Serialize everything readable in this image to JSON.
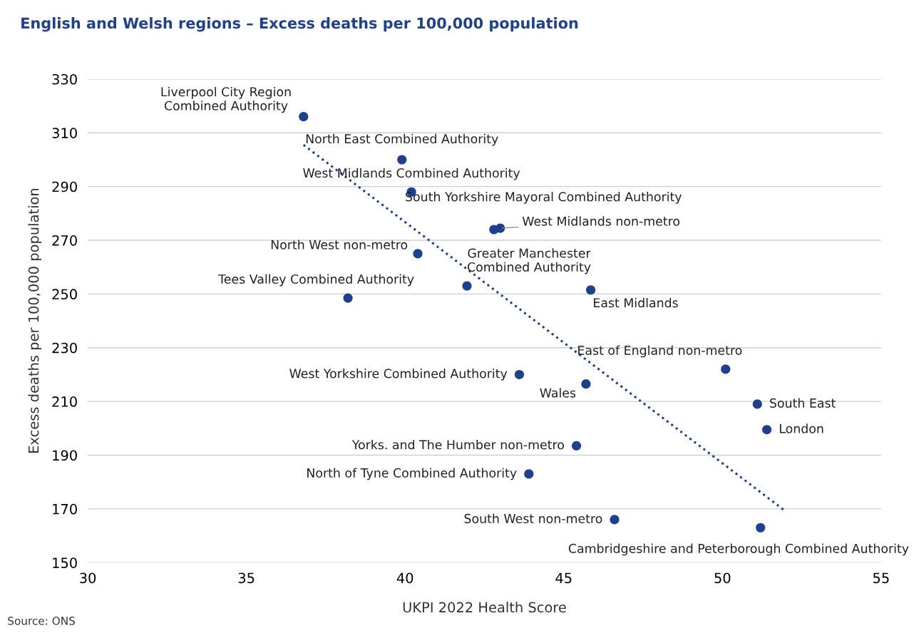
{
  "chart_data": {
    "type": "scatter",
    "title": "English and Welsh regions – Excess deaths per 100,000 population",
    "xlabel": "UKPI 2022 Health Score",
    "ylabel": "Excess deaths per 100,000 population",
    "xlim": [
      30,
      55
    ],
    "xticks": [
      30,
      35,
      40,
      45,
      50,
      55
    ],
    "ylim": [
      150,
      330
    ],
    "yticks": [
      150,
      170,
      190,
      210,
      230,
      250,
      270,
      290,
      310,
      330
    ],
    "grid": "y",
    "series": [
      {
        "marker": "circle",
        "color": "#1f3f8f",
        "x": [
          36.8,
          39.9,
          40.2,
          42.8,
          43.0,
          40.4,
          41.95,
          45.85,
          38.2,
          50.1,
          43.6,
          45.7,
          51.1,
          51.4,
          45.4,
          43.9,
          46.6,
          51.2
        ],
        "values": [
          316,
          300,
          288,
          274,
          274.5,
          265,
          253,
          251.5,
          248.5,
          222,
          220,
          216.5,
          209,
          199.5,
          193.5,
          183,
          166,
          163
        ]
      },
      {
        "type": "line",
        "color": "#1f3f8f",
        "line_style": "dotted",
        "x": [
          36.8,
          51.95
        ],
        "values": [
          305.5,
          169.5
        ]
      }
    ],
    "annotations": [
      {
        "text": "Liverpool City Region\nCombined Authority",
        "x": 36.8,
        "y": 316
      },
      {
        "text": "North East Combined Authority",
        "x": 39.9,
        "y": 300
      },
      {
        "text": "West Midlands Combined Authority",
        "x": 40.2,
        "y": 288
      },
      {
        "text": "South Yorkshire Mayoral Combined Authority",
        "x": 42.8,
        "y": 274
      },
      {
        "text": "West Midlands non-metro",
        "x": 43.0,
        "y": 274.5
      },
      {
        "text": "North West non-metro",
        "x": 40.4,
        "y": 265
      },
      {
        "text": "Greater Manchester\nCombined Authority",
        "x": 41.95,
        "y": 253
      },
      {
        "text": "East Midlands",
        "x": 45.85,
        "y": 251.5
      },
      {
        "text": "Tees Valley Combined Authority",
        "x": 38.2,
        "y": 248.5
      },
      {
        "text": "East of England non-metro",
        "x": 50.1,
        "y": 222
      },
      {
        "text": "West Yorkshire Combined Authority",
        "x": 43.6,
        "y": 220
      },
      {
        "text": "Wales",
        "x": 45.7,
        "y": 216.5
      },
      {
        "text": "South East",
        "x": 51.1,
        "y": 209
      },
      {
        "text": "London",
        "x": 51.4,
        "y": 199.5
      },
      {
        "text": "Yorks. and The Humber non-metro",
        "x": 45.4,
        "y": 193.5
      },
      {
        "text": "North of Tyne Combined Authority",
        "x": 43.9,
        "y": 183
      },
      {
        "text": "South West non-metro",
        "x": 46.6,
        "y": 166
      },
      {
        "text": "Cambridgeshire and Peterborough Combined Authority",
        "x": 51.2,
        "y": 163
      },
      "Source: ONS"
    ]
  }
}
